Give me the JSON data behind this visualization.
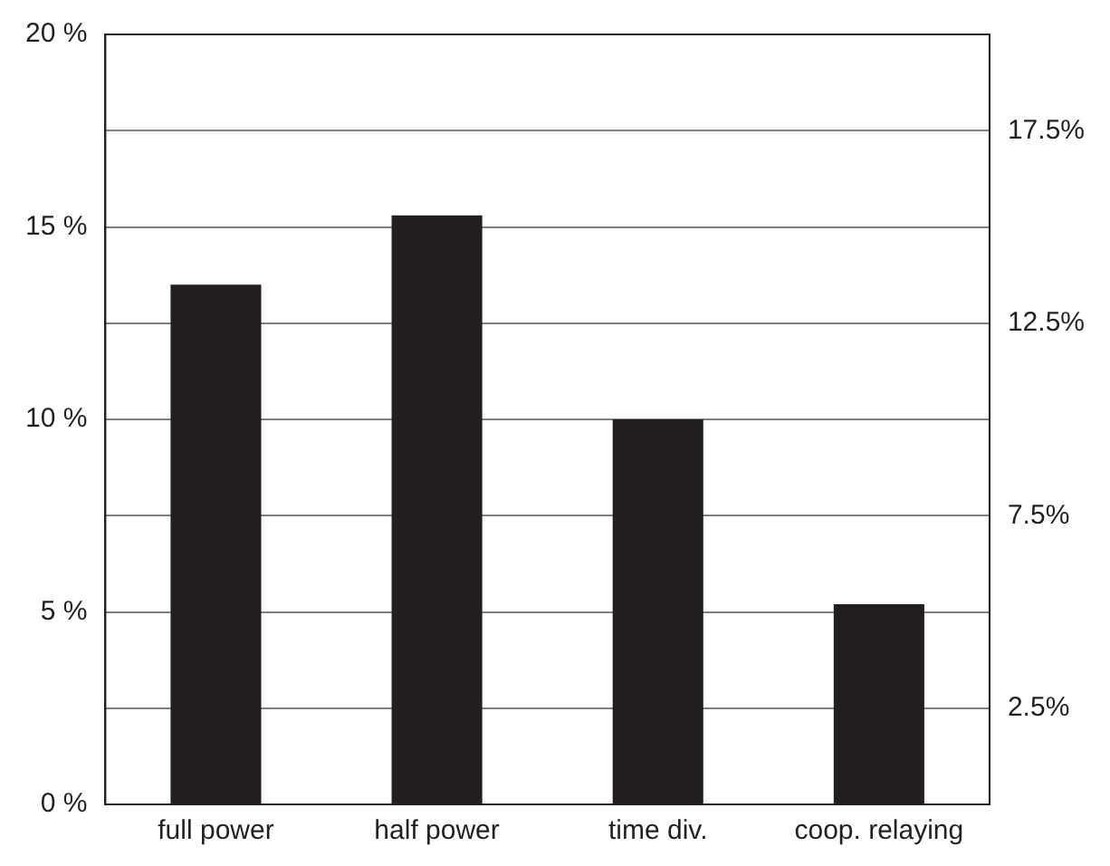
{
  "chart_data": {
    "type": "bar",
    "categories": [
      "full power",
      "half power",
      "time div.",
      "coop. relaying"
    ],
    "series": [
      {
        "color": "#231f20",
        "values": [
          13.5,
          15.3,
          10,
          5.2
        ]
      }
    ],
    "ylim": [
      0,
      20
    ],
    "yticks": [
      {
        "value": 0,
        "label": "0 %"
      },
      {
        "value": 5,
        "label": "5 %"
      },
      {
        "value": 10,
        "label": "10 %"
      },
      {
        "value": 15,
        "label": "15 %"
      },
      {
        "value": 20,
        "label": "20 %"
      }
    ],
    "y2lim": [
      0,
      20
    ],
    "y2ticks": [
      {
        "value": 2.5,
        "label": "2.5%"
      },
      {
        "value": 7.5,
        "label": "7.5%"
      },
      {
        "value": 12.5,
        "label": "12.5%"
      },
      {
        "value": 17.5,
        "label": "17.5%"
      }
    ],
    "grid": "y",
    "legend": false
  }
}
